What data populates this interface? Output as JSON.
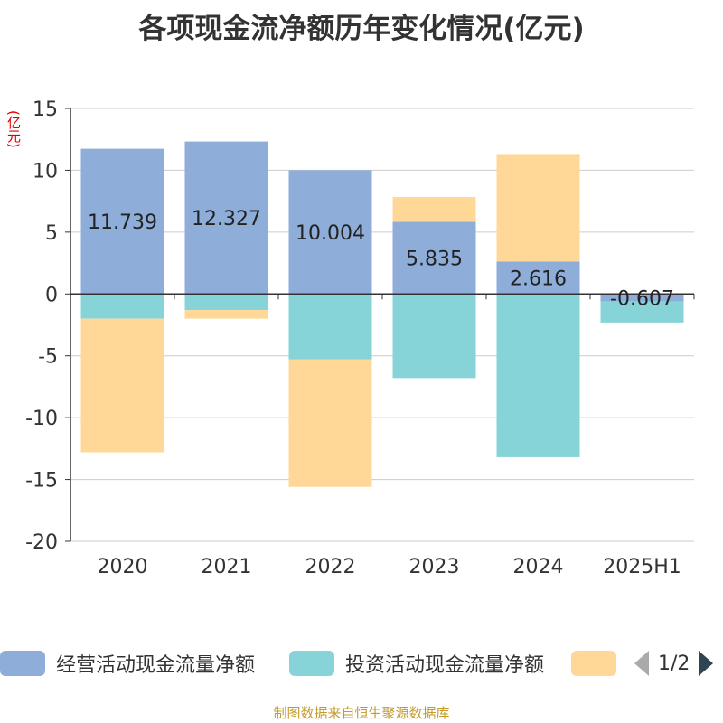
{
  "title": "各项现金流净额历年变化情况(亿元)",
  "unit_label": "(亿元)",
  "footer": "制图数据来自恒生聚源数据库",
  "legend": {
    "items": [
      {
        "label": "经营活动现金流量净额",
        "color": "#8eaed9"
      },
      {
        "label": "投资活动现金流量净额",
        "color": "#86d4d8"
      },
      {
        "label": "",
        "color": "#ffd898"
      }
    ],
    "pager_text": "1/2"
  },
  "chart_data": {
    "type": "bar",
    "stacked": true,
    "categories": [
      "2020",
      "2021",
      "2022",
      "2023",
      "2024",
      "2025H1"
    ],
    "ylim": [
      -20,
      15
    ],
    "yticks": [
      15,
      10,
      5,
      0,
      -5,
      -10,
      -15,
      -20
    ],
    "grid": true,
    "series": [
      {
        "name": "经营活动现金流量净额",
        "color": "#8eaed9",
        "values": [
          11.739,
          12.327,
          10.004,
          5.835,
          2.616,
          -0.607
        ],
        "labels": [
          "11.739",
          "12.327",
          "10.004",
          "5.835",
          "2.616",
          "-0.607"
        ]
      },
      {
        "name": "投资活动现金流量净额",
        "color": "#86d4d8",
        "values": [
          -2.0,
          -1.3,
          -5.3,
          -6.8,
          -13.2,
          -1.7
        ]
      },
      {
        "color": "#ffd898",
        "values": [
          -10.8,
          -0.7,
          -10.3,
          2.0,
          8.7,
          0
        ]
      }
    ]
  }
}
